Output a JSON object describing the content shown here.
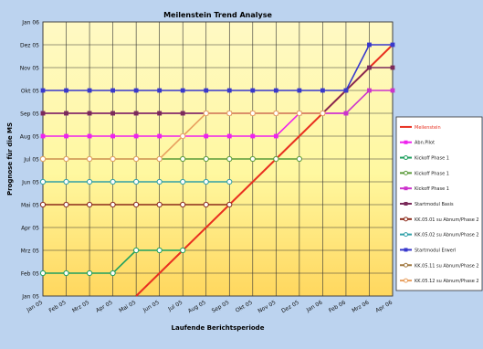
{
  "chart_data": {
    "type": "line",
    "title": "Meilenstein Trend Analyse",
    "xlabel": "Laufende Berichtsperiode",
    "ylabel": "Prognose für die MS",
    "x_ticks": [
      "Jan 05",
      "Feb 05",
      "Mrz 05",
      "Apr 05",
      "Mai 05",
      "Jun 05",
      "Jul 05",
      "Aug 05",
      "Sep 05",
      "Okt 05",
      "Nov 05",
      "Dez 05",
      "Jan 06",
      "Feb 06",
      "Mrz 06",
      "Apr 06"
    ],
    "y_ticks": [
      "Jan 05",
      "Feb 05",
      "Mrz 05",
      "Apr 05",
      "Mai 05",
      "Jun 05",
      "Jul 05",
      "Aug 05",
      "Sep 05",
      "Okt 05",
      "Nov 05",
      "Dez 05",
      "Jan 06"
    ],
    "xlim": [
      0,
      15
    ],
    "ylim": [
      0,
      12
    ],
    "grid": true,
    "legend_position": "right",
    "series": [
      {
        "name": "Meilenstein",
        "color": "#e83020",
        "marker": "none",
        "width": 2,
        "values": [
          null,
          null,
          null,
          null,
          0,
          1,
          2,
          3,
          4,
          5,
          6,
          7,
          8,
          9,
          10,
          11
        ]
      },
      {
        "name": "Abn.Pilot",
        "color": "#ee22ee",
        "marker": "square",
        "values": [
          7,
          7,
          7,
          7,
          7,
          7,
          7,
          7,
          7,
          7,
          7,
          8,
          8,
          8,
          null,
          null
        ]
      },
      {
        "name": "Kickoff Phase 1",
        "color": "#20a060",
        "marker": "circle",
        "values": [
          1,
          1,
          1,
          1,
          2,
          2,
          2,
          null,
          null,
          null,
          null,
          null,
          null,
          null,
          null,
          null
        ]
      },
      {
        "name": "Kickoff Phase 1",
        "color": "#5a9a3a",
        "marker": "circle",
        "values": [
          6,
          6,
          6,
          6,
          6,
          6,
          6,
          6,
          6,
          6,
          6,
          6,
          null,
          null,
          null,
          null
        ]
      },
      {
        "name": "Kickoff Phase 1",
        "color": "#cc33cc",
        "marker": "square",
        "values": [
          8,
          8,
          8,
          8,
          8,
          8,
          8,
          8,
          8,
          8,
          8,
          8,
          8,
          8,
          9,
          9
        ]
      },
      {
        "name": "Startmodul Basis",
        "color": "#7a2a5a",
        "marker": "square",
        "values": [
          8,
          8,
          8,
          8,
          8,
          8,
          8,
          8,
          8,
          8,
          8,
          8,
          8,
          9,
          10,
          10
        ]
      },
      {
        "name": "KK.05.01 su Abnum/Phase 2",
        "color": "#8b2a1a",
        "marker": "circle",
        "values": [
          4,
          4,
          4,
          4,
          4,
          4,
          4,
          4,
          4,
          null,
          null,
          null,
          null,
          null,
          null,
          null
        ]
      },
      {
        "name": "KK.05.02 su Abnum/Phase 2",
        "color": "#30a0a8",
        "marker": "circle",
        "values": [
          5,
          5,
          5,
          5,
          5,
          5,
          5,
          5,
          5,
          null,
          null,
          null,
          null,
          null,
          null,
          null
        ]
      },
      {
        "name": "Startmodul Erwerl",
        "color": "#3838cc",
        "marker": "square",
        "values": [
          9,
          9,
          9,
          9,
          9,
          9,
          9,
          9,
          9,
          9,
          9,
          9,
          9,
          9,
          11,
          11
        ]
      },
      {
        "name": "KK.05.11 su Abnum/Phase 2",
        "color": "#a07840",
        "marker": "circle",
        "values": [
          null,
          null,
          null,
          null,
          null,
          null,
          null,
          null,
          null,
          null,
          null,
          null,
          null,
          null,
          null,
          null
        ]
      },
      {
        "name": "KK.05.12 su Abnum/Phase 2",
        "color": "#e8a060",
        "marker": "circle",
        "values": [
          6,
          6,
          6,
          6,
          6,
          6,
          7,
          8,
          8,
          8,
          8,
          8,
          8,
          null,
          null,
          null
        ]
      }
    ]
  }
}
